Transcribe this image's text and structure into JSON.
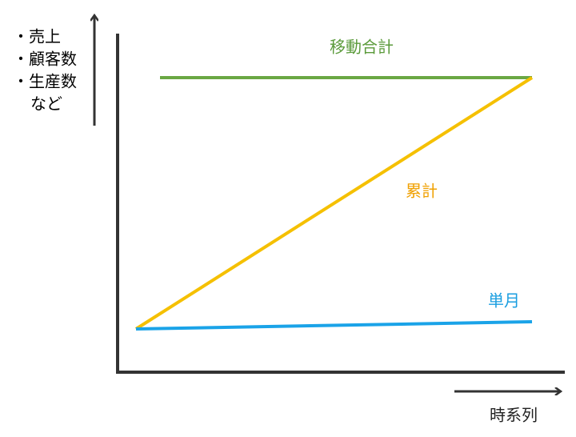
{
  "y_axis_label": {
    "items": [
      "・売上",
      "・顧客数",
      "・生産数",
      "など"
    ]
  },
  "x_axis_label": "時系列",
  "lines": {
    "moving_total": "移動合計",
    "cumulative": "累計",
    "monthly": "単月"
  }
}
